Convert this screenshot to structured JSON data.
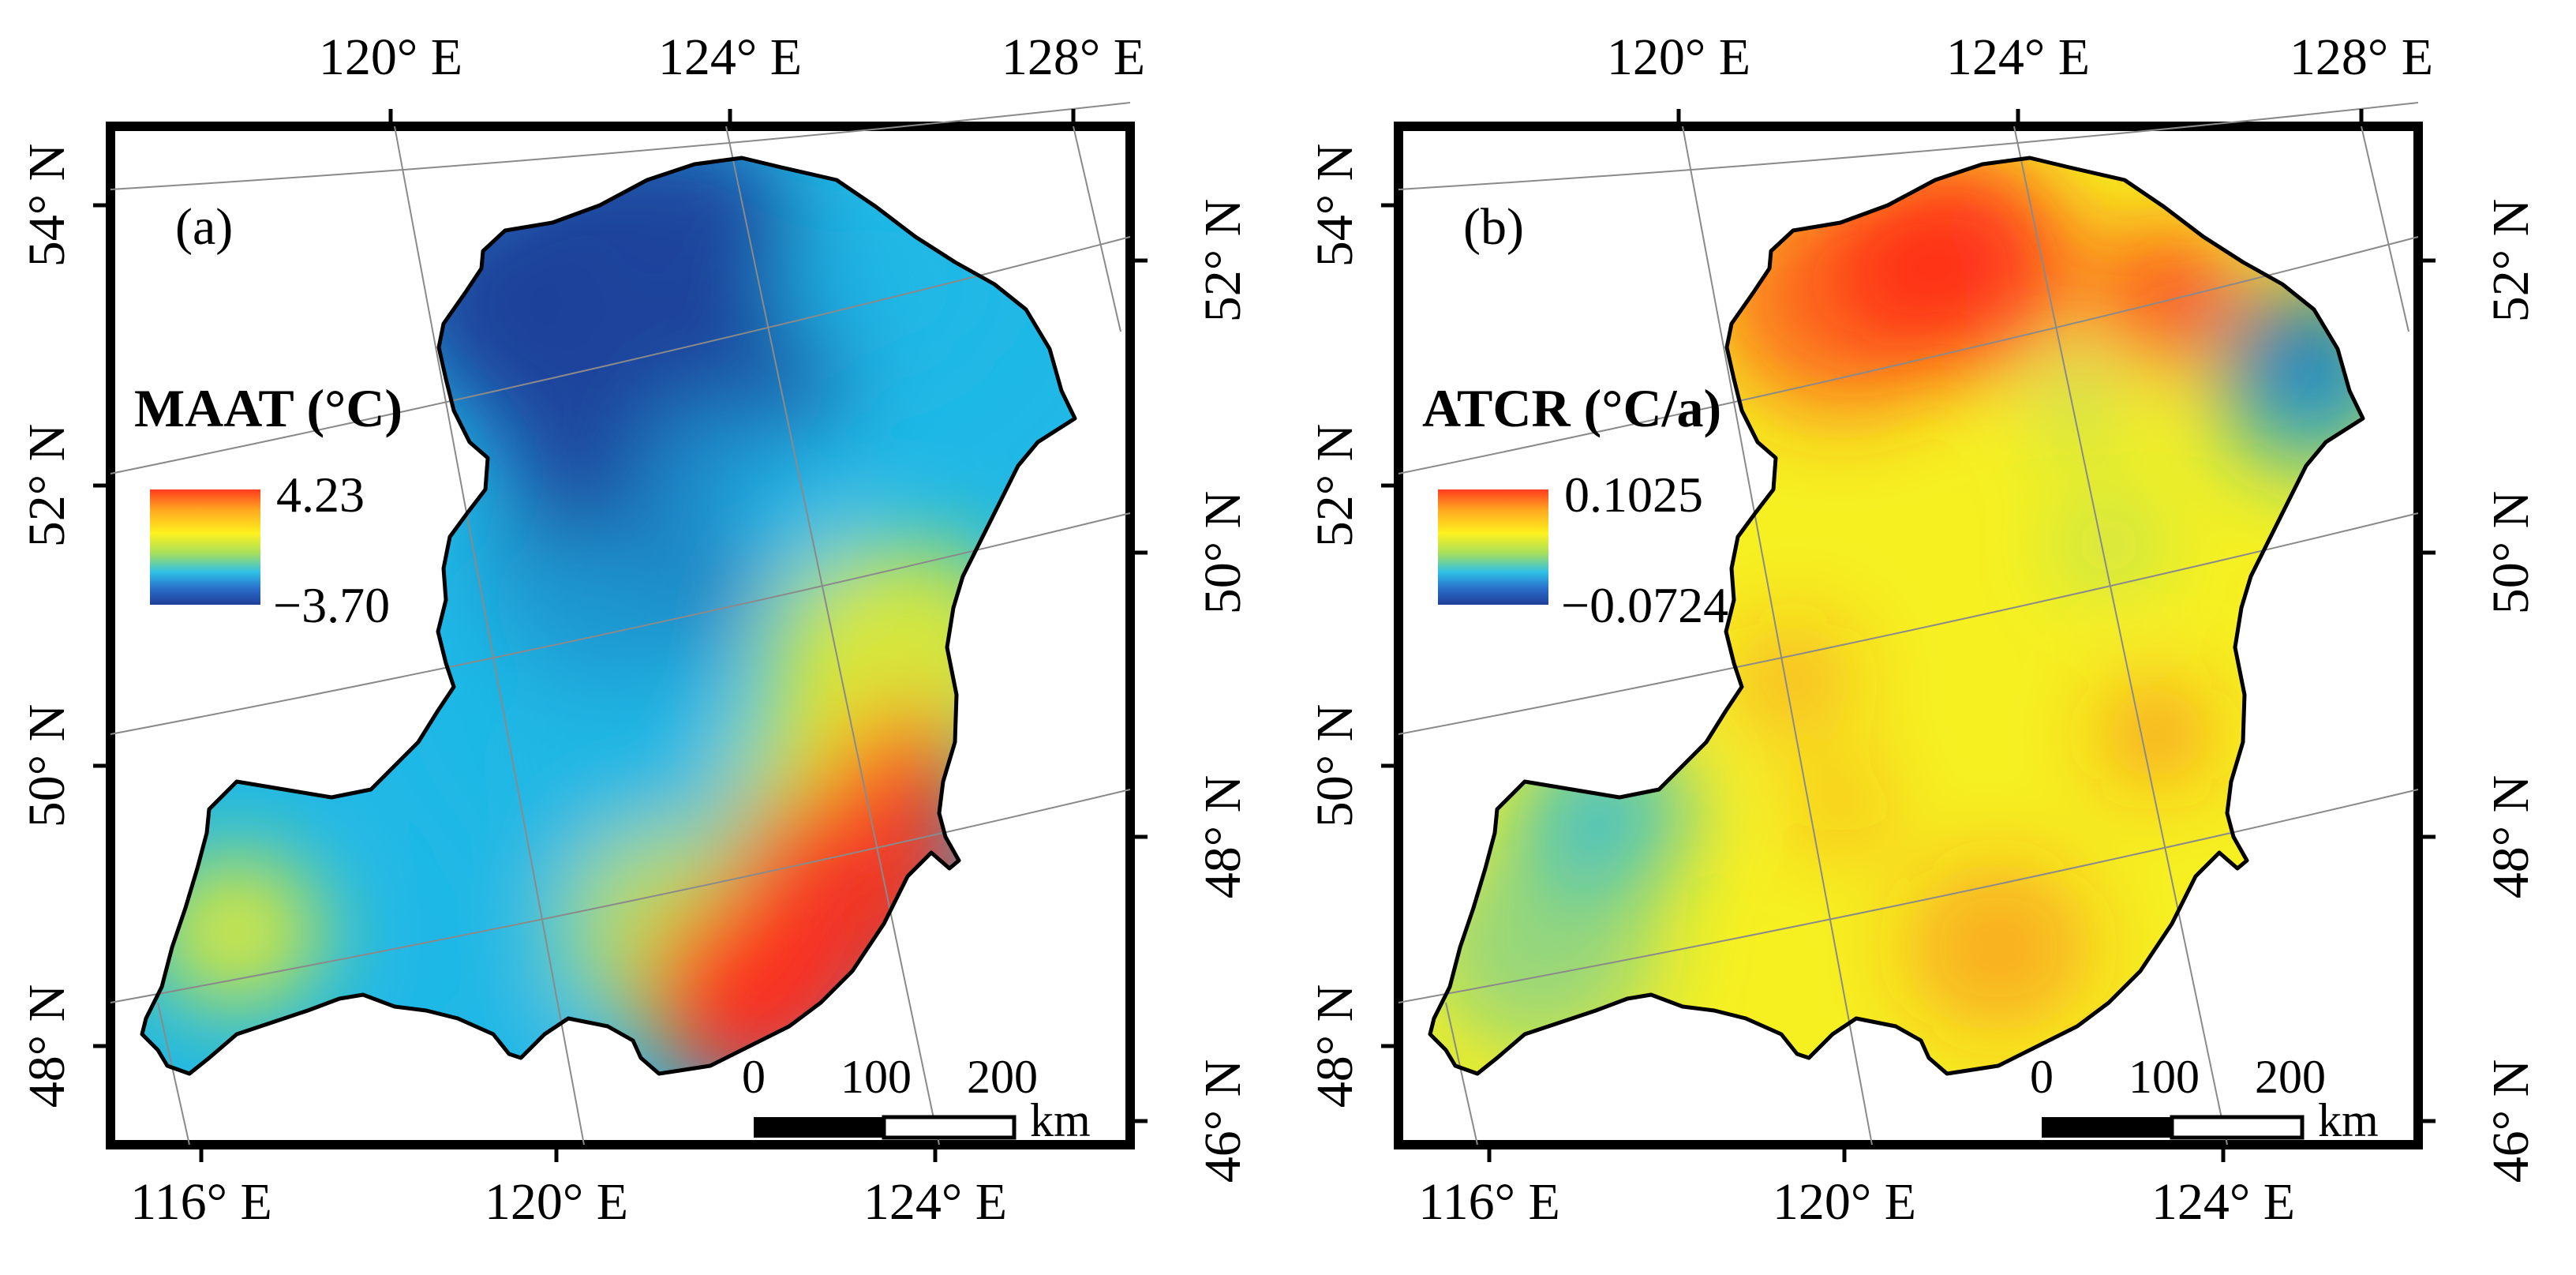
{
  "figure": {
    "panels": [
      {
        "id": "a",
        "tag": "(a)",
        "legend_title": "MAAT (°C)",
        "legend_max": "4.23",
        "legend_min": "−3.70",
        "colors": {
          "high": "#ff2a1a",
          "mid": "#f6f021",
          "low": "#1f3f9a",
          "cool": "#20b8e6"
        }
      },
      {
        "id": "b",
        "tag": "(b)",
        "legend_title": "ATCR (°C/a)",
        "legend_max": "0.1025",
        "legend_min": "−0.0724",
        "colors": {
          "high": "#ff2a1a",
          "mid": "#f6f021",
          "low": "#1f3f9a",
          "cool": "#20b8e6"
        }
      }
    ],
    "axes": {
      "top_labels": [
        "120° E",
        "124° E",
        "128° E"
      ],
      "bottom_labels": [
        "116° E",
        "120° E",
        "124° E"
      ],
      "left_labels": [
        "54° N",
        "52° N",
        "50° N",
        "48° N"
      ],
      "right_labels": [
        "52° N",
        "50° N",
        "48° N",
        "46° N"
      ]
    },
    "scale_bar": {
      "ticks": [
        "0",
        "100",
        "200"
      ],
      "unit": "km"
    }
  }
}
